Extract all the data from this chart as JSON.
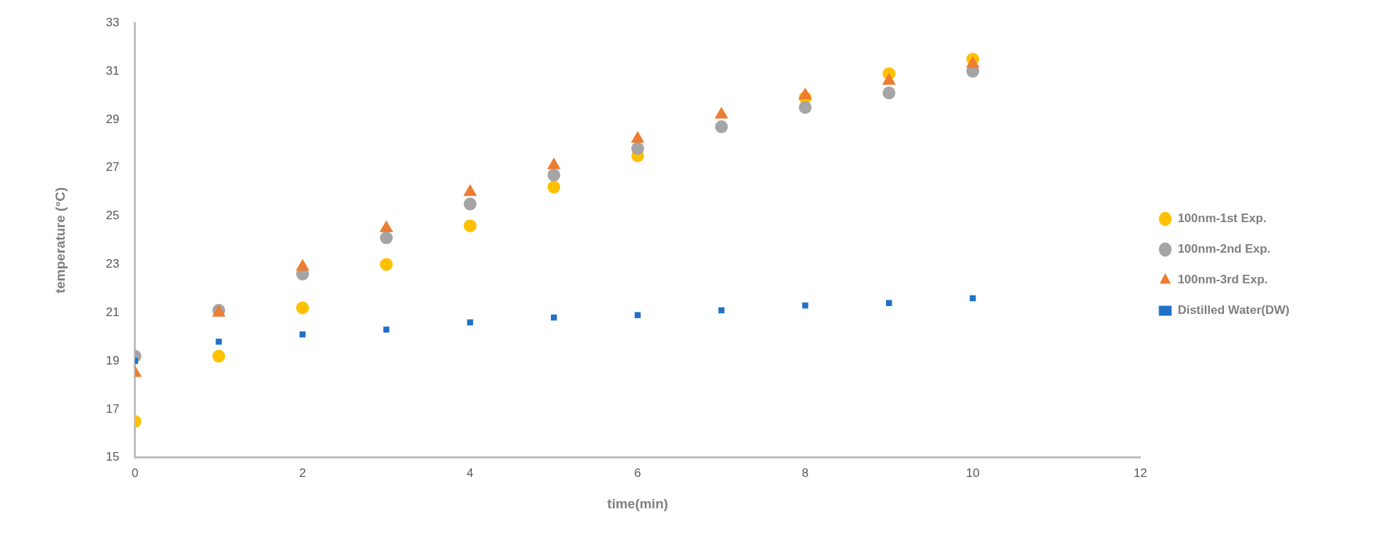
{
  "chart_data": {
    "type": "scatter",
    "xlabel": "time(min)",
    "ylabel": "temperature (°C)",
    "x": [
      0,
      1,
      2,
      3,
      4,
      5,
      6,
      7,
      8,
      9,
      10
    ],
    "series": [
      {
        "name": "100nm-1st Exp.",
        "color": "#ffc000",
        "marker": "circle",
        "values": [
          16.5,
          19.2,
          21.2,
          23.0,
          24.6,
          26.2,
          27.5,
          null,
          29.9,
          30.9,
          31.5
        ]
      },
      {
        "name": "100nm-2nd Exp.",
        "color": "#a5a5a5",
        "marker": "circle",
        "values": [
          19.2,
          21.1,
          22.6,
          24.1,
          25.5,
          26.7,
          27.8,
          28.7,
          29.5,
          30.1,
          31.0
        ]
      },
      {
        "name": "100nm-3rd Exp.",
        "color": "#ed7d31",
        "marker": "triangle",
        "values": [
          18.5,
          21.0,
          22.9,
          24.5,
          26.0,
          27.1,
          28.2,
          29.2,
          30.0,
          30.6,
          31.3
        ]
      },
      {
        "name": "Distilled Water(DW)",
        "color": "#2072c8",
        "marker": "square",
        "values": [
          19.0,
          19.8,
          20.1,
          20.3,
          20.6,
          20.8,
          20.9,
          21.1,
          21.3,
          21.4,
          21.6
        ]
      }
    ],
    "xlim": [
      0,
      12
    ],
    "xticks": [
      0,
      2,
      4,
      6,
      8,
      10,
      12
    ],
    "ylim": [
      15,
      33
    ],
    "yticks": [
      15,
      17,
      19,
      21,
      23,
      25,
      27,
      29,
      31,
      33
    ],
    "grid": false,
    "legend": "right"
  }
}
